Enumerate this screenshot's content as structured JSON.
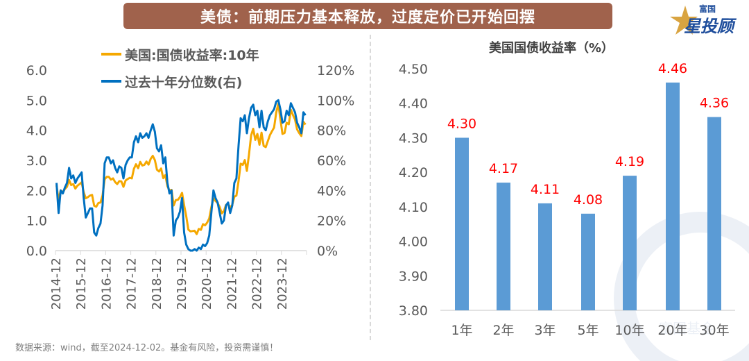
{
  "banner_title": "美债：前期压力基本释放，过度定价已开始回摆",
  "logo": {
    "top": "富国",
    "bottom": "星投顾"
  },
  "watermark": "富国基金",
  "footer": "数据来源：wind，截至2024-12-02。基金有风险，投资需谨慎！",
  "colors": {
    "yield": "#f5a800",
    "percentile": "#0070c0",
    "bar": "#5b9bd5",
    "label": "#ff0000",
    "banner": "#a0624c"
  },
  "chart_data": [
    {
      "type": "line",
      "legend": [
        "美国:国债收益率:10年",
        "过去十年分位数(右)"
      ],
      "left_ticks": [
        "0.0",
        "1.0",
        "2.0",
        "3.0",
        "4.0",
        "5.0",
        "6.0"
      ],
      "right_ticks": [
        "0%",
        "20%",
        "40%",
        "60%",
        "80%",
        "100%",
        "120%"
      ],
      "ylim": [
        0,
        6
      ],
      "y2lim": [
        0,
        120
      ],
      "x_ticks": [
        "2014-12",
        "2015-12",
        "2016-12",
        "2017-12",
        "2018-12",
        "2019-12",
        "2020-12",
        "2021-12",
        "2022-12",
        "2023-12"
      ],
      "x_start": "2014-12",
      "x_end": "2024-11",
      "yield": [
        2.17,
        1.68,
        2.0,
        1.94,
        2.05,
        2.12,
        2.35,
        2.18,
        2.21,
        2.06,
        2.16,
        2.21,
        2.27,
        1.94,
        1.74,
        1.78,
        1.83,
        1.85,
        1.49,
        1.46,
        1.58,
        1.6,
        1.84,
        2.37,
        2.45,
        2.45,
        2.36,
        2.4,
        2.28,
        2.21,
        2.31,
        2.3,
        2.12,
        2.33,
        2.38,
        2.42,
        2.4,
        2.72,
        2.87,
        2.74,
        2.95,
        2.83,
        2.85,
        2.96,
        2.86,
        3.05,
        3.15,
        3.01,
        2.69,
        2.63,
        2.73,
        2.41,
        2.51,
        2.14,
        2.0,
        2.02,
        1.5,
        1.68,
        1.69,
        1.78,
        1.92,
        1.51,
        1.15,
        0.7,
        0.64,
        0.65,
        0.66,
        0.55,
        0.72,
        0.69,
        0.88,
        0.84,
        0.93,
        1.07,
        1.44,
        1.74,
        1.65,
        1.58,
        1.45,
        1.24,
        1.31,
        1.52,
        1.55,
        1.43,
        1.52,
        1.79,
        1.83,
        2.32,
        2.89,
        2.85,
        3.01,
        2.65,
        3.19,
        3.83,
        4.05,
        3.68,
        3.88,
        3.52,
        3.92,
        3.48,
        3.44,
        3.64,
        3.84,
        3.97,
        4.09,
        4.59,
        4.88,
        4.37,
        3.88,
        3.91,
        4.25,
        4.2,
        4.68,
        4.51,
        4.36,
        4.03,
        3.91,
        3.81,
        4.28,
        4.19
      ],
      "percentile": [
        45,
        25,
        40,
        38,
        42,
        45,
        55,
        48,
        50,
        45,
        48,
        50,
        52,
        35,
        22,
        25,
        28,
        28,
        12,
        10,
        15,
        18,
        30,
        58,
        62,
        62,
        58,
        60,
        55,
        52,
        56,
        55,
        48,
        57,
        60,
        62,
        62,
        72,
        76,
        72,
        78,
        75,
        76,
        78,
        75,
        80,
        84,
        79,
        68,
        66,
        70,
        58,
        62,
        45,
        38,
        40,
        10,
        20,
        22,
        26,
        35,
        12,
        4,
        1,
        0,
        0,
        1,
        0,
        2,
        1,
        4,
        3,
        5,
        10,
        25,
        40,
        35,
        32,
        25,
        18,
        20,
        30,
        32,
        25,
        30,
        45,
        48,
        70,
        88,
        86,
        90,
        78,
        88,
        95,
        97,
        90,
        93,
        82,
        93,
        82,
        80,
        86,
        90,
        92,
        94,
        99,
        100,
        94,
        85,
        86,
        93,
        90,
        98,
        95,
        92,
        85,
        82,
        78,
        92,
        90
      ]
    },
    {
      "type": "bar",
      "title": "美国国债收益率（%）",
      "categories": [
        "1年",
        "2年",
        "3年",
        "5年",
        "10年",
        "20年",
        "30年"
      ],
      "values": [
        4.3,
        4.17,
        4.11,
        4.08,
        4.19,
        4.46,
        4.36
      ],
      "value_labels": [
        "4.30",
        "4.17",
        "4.11",
        "4.08",
        "4.19",
        "4.46",
        "4.36"
      ],
      "ylim": [
        3.8,
        4.5
      ],
      "y_ticks": [
        "3.80",
        "3.90",
        "4.00",
        "4.10",
        "4.20",
        "4.30",
        "4.40",
        "4.50"
      ]
    }
  ]
}
